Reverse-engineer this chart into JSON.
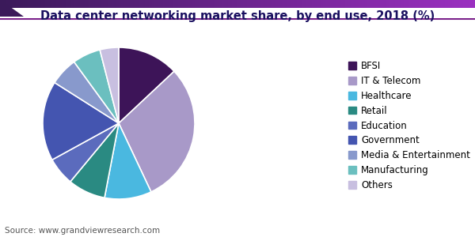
{
  "title": "Data center networking market share, by end use, 2018 (%)",
  "source": "Source: www.grandviewresearch.com",
  "labels": [
    "BFSI",
    "IT & Telecom",
    "Healthcare",
    "Retail",
    "Education",
    "Government",
    "Media & Entertainment",
    "Manufacturing",
    "Others"
  ],
  "sizes": [
    13,
    30,
    10,
    8,
    6,
    17,
    6,
    6,
    4
  ],
  "colors": [
    "#3d1458",
    "#a899c8",
    "#4ab8e0",
    "#2a8a82",
    "#5b6bbd",
    "#4455b0",
    "#8899cc",
    "#6bbfbf",
    "#c8bfe0"
  ],
  "startangle": 90,
  "background_color": "#ffffff",
  "title_fontsize": 10.5,
  "legend_fontsize": 8.5,
  "source_fontsize": 7.5,
  "header_left_color": "#3b1a5a",
  "header_right_color": "#9b30c0",
  "header_line_color": "#7a208a"
}
